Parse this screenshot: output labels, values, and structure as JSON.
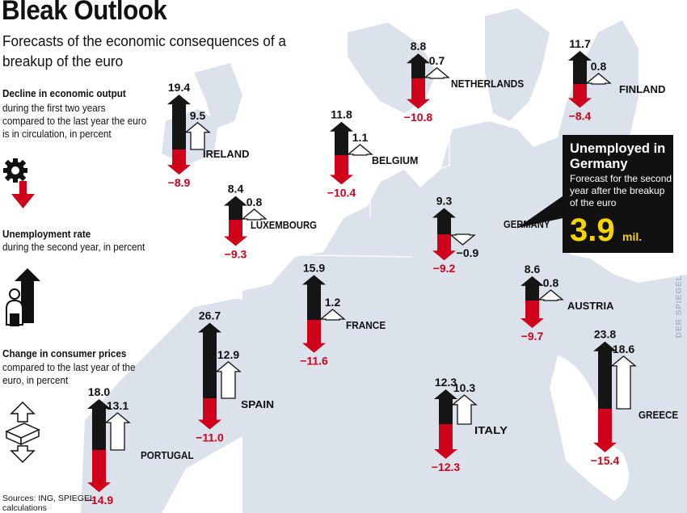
{
  "title": "Bleak Outlook",
  "subtitle": "Forecasts of the economic consequences of a breakup of the euro",
  "legend": {
    "output_heading": "Decline in economic output",
    "output_text": "during the first two years compared to the last year the euro is in circulation, in percent",
    "unemployment_heading": "Unemployment rate",
    "unemployment_text": "during the second year, in percent",
    "prices_heading": "Change in consumer prices",
    "prices_text": "compared to the last year of the euro, in percent"
  },
  "callout": {
    "heading": "Unemployed in Germany",
    "text": "Forecast for the second year after the breakup of the euro",
    "value": "3.9",
    "unit": "mil."
  },
  "sources": "Sources: ING, SPIEGEL calculations",
  "credit": "DER SPIEGEL",
  "colors": {
    "output_decline": "#d0021b",
    "unemployment": "#151515",
    "consumer_prices": "#ffffff",
    "map_land": "#dce2eb",
    "map_sea": "#ffffff",
    "callout_value": "#f5d400"
  },
  "icons": [
    "gear-icon",
    "person-icon",
    "money-stack-icon"
  ],
  "chart_data": {
    "type": "bar",
    "series": [
      {
        "name": "Decline in economic output",
        "values": [
          -8.9,
          -10.4,
          -10.8,
          -8.4,
          -9.3,
          -9.2,
          -11.6,
          -9.7,
          -11.0,
          -14.9,
          -12.3,
          -15.4
        ]
      },
      {
        "name": "Unemployment rate",
        "values": [
          19.4,
          11.8,
          8.8,
          11.7,
          8.4,
          9.3,
          15.9,
          8.6,
          26.7,
          18.0,
          12.3,
          23.8
        ]
      },
      {
        "name": "Change in consumer prices",
        "values": [
          9.5,
          1.1,
          0.7,
          0.8,
          0.8,
          -0.9,
          1.2,
          0.8,
          12.9,
          13.1,
          10.3,
          18.6
        ]
      }
    ],
    "categories": [
      "IRELAND",
      "BELGIUM",
      "NETHERLANDS",
      "FINLAND",
      "LUXEMBOURG",
      "GERMANY",
      "FRANCE",
      "AUSTRIA",
      "SPAIN",
      "PORTUGAL",
      "ITALY",
      "GREECE"
    ],
    "output_labels": [
      "−8.9",
      "−10.4",
      "−10.8",
      "−8.4",
      "−9.3",
      "−9.2",
      "−11.6",
      "−9.7",
      "−11.0",
      "−14.9",
      "−12.3",
      "−15.4"
    ],
    "unemployment_labels": [
      "19.4",
      "11.8",
      "8.8",
      "11.7",
      "8.4",
      "9.3",
      "15.9",
      "8.6",
      "26.7",
      "18.0",
      "12.3",
      "23.8"
    ],
    "prices_labels": [
      "9.5",
      "1.1",
      "0.7",
      "0.8",
      "0.8",
      "−0.9",
      "1.2",
      "0.8",
      "12.9",
      "13.1",
      "10.3",
      "18.6"
    ]
  }
}
